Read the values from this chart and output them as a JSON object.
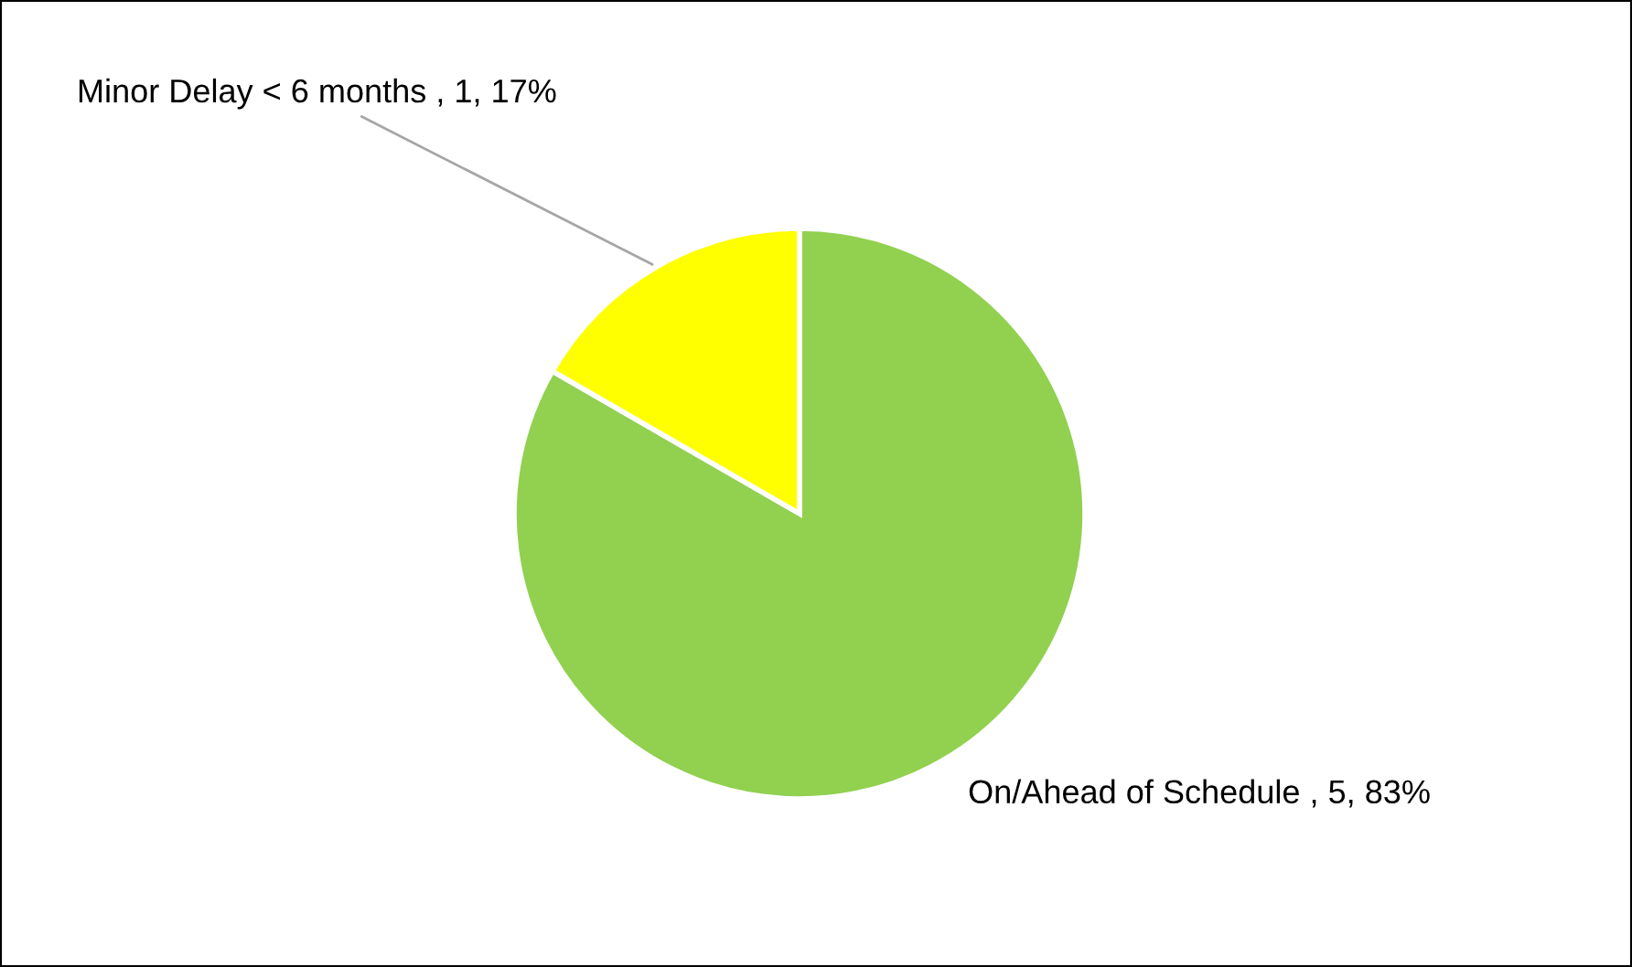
{
  "chart_data": {
    "type": "pie",
    "categories": [
      "On/Ahead of Schedule",
      "Minor Delay < 6 months"
    ],
    "values": [
      5,
      1
    ],
    "value_labels": [
      "5, 83%",
      "1, 17%"
    ],
    "colors": [
      "#92d050",
      "#ffff00"
    ],
    "legend": false
  }
}
